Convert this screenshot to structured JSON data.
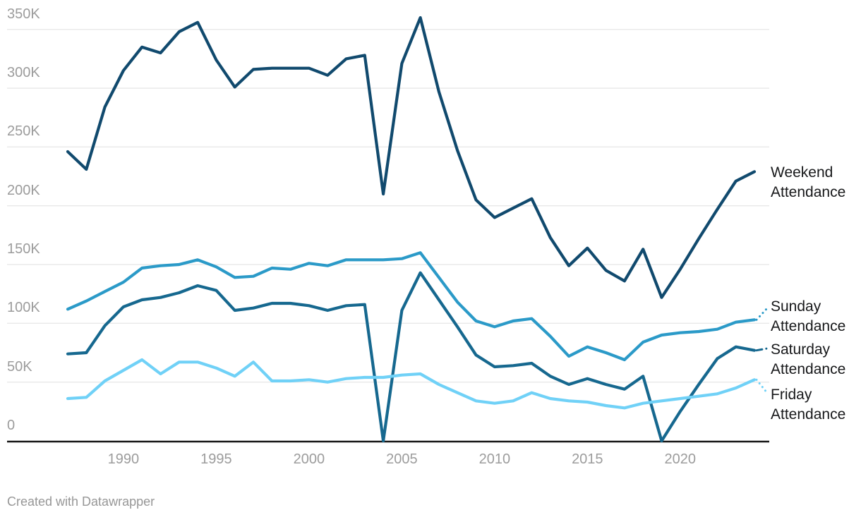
{
  "chart_data": {
    "type": "line",
    "title": "",
    "xlabel": "",
    "ylabel": "",
    "grid": "horizontal",
    "legend_position": "right-of-line-ends",
    "ylim": [
      0,
      350000
    ],
    "y_ticks": [
      {
        "value": 0,
        "label": "0"
      },
      {
        "value": 50000,
        "label": "50K"
      },
      {
        "value": 100000,
        "label": "100K"
      },
      {
        "value": 150000,
        "label": "150K"
      },
      {
        "value": 200000,
        "label": "200K"
      },
      {
        "value": 250000,
        "label": "250K"
      },
      {
        "value": 300000,
        "label": "300K"
      },
      {
        "value": 350000,
        "label": "350K"
      }
    ],
    "x_ticks": [
      1990,
      1995,
      2000,
      2005,
      2010,
      2015,
      2020
    ],
    "x": [
      1987,
      1988,
      1989,
      1990,
      1991,
      1992,
      1993,
      1994,
      1995,
      1996,
      1997,
      1998,
      1999,
      2000,
      2001,
      2002,
      2003,
      2004,
      2005,
      2006,
      2007,
      2008,
      2009,
      2010,
      2011,
      2012,
      2013,
      2014,
      2015,
      2016,
      2017,
      2018,
      2019,
      2020,
      2021,
      2022,
      2023,
      2024
    ],
    "series": [
      {
        "name": "Weekend Attendance",
        "label_lines": [
          "Weekend",
          "Attendance"
        ],
        "color": "#114a6e",
        "connector": "none",
        "values": [
          246000,
          231000,
          284000,
          315000,
          335000,
          330000,
          348000,
          356000,
          324000,
          301000,
          316000,
          317000,
          317000,
          317000,
          311000,
          325000,
          328000,
          210000,
          321000,
          360000,
          297000,
          247000,
          205000,
          190000,
          198000,
          206000,
          173000,
          149000,
          164000,
          145000,
          136000,
          163000,
          122000,
          146000,
          172000,
          197000,
          221000,
          229000
        ]
      },
      {
        "name": "Sunday Attendance",
        "label_lines": [
          "Sunday",
          "Attendance"
        ],
        "color": "#2b9ac8",
        "connector": "dotted",
        "values": [
          112000,
          119000,
          127000,
          135000,
          147000,
          149000,
          150000,
          154000,
          148000,
          139000,
          140000,
          147000,
          146000,
          151000,
          149000,
          154000,
          154000,
          154000,
          155000,
          160000,
          139000,
          118000,
          102000,
          97000,
          102000,
          104000,
          89000,
          72000,
          80000,
          75000,
          69000,
          84000,
          90000,
          92000,
          93000,
          95000,
          101000,
          103000
        ]
      },
      {
        "name": "Saturday Attendance",
        "label_lines": [
          "Saturday",
          "Attendance"
        ],
        "color": "#16688f",
        "connector": "dash-dot",
        "values": [
          74000,
          75000,
          98000,
          114000,
          120000,
          122000,
          126000,
          132000,
          128000,
          111000,
          113000,
          117000,
          117000,
          115000,
          111000,
          115000,
          116000,
          0,
          111000,
          143000,
          120000,
          97000,
          73000,
          63000,
          64000,
          66000,
          55000,
          48000,
          53000,
          48000,
          44000,
          55000,
          0,
          25000,
          48000,
          70000,
          80000,
          77000
        ]
      },
      {
        "name": "Friday Attendance",
        "label_lines": [
          "Friday",
          "Attendance"
        ],
        "color": "#70d1f7",
        "connector": "dotted",
        "values": [
          36000,
          37000,
          51000,
          60000,
          69000,
          57000,
          67000,
          67000,
          62000,
          55000,
          67000,
          51000,
          51000,
          52000,
          50000,
          53000,
          54000,
          54000,
          56000,
          57000,
          48000,
          41000,
          34000,
          32000,
          34000,
          41000,
          36000,
          34000,
          33000,
          30000,
          28000,
          32000,
          34000,
          36000,
          38000,
          40000,
          45000,
          52000
        ]
      }
    ]
  },
  "colors": {
    "background": "#ffffff",
    "gridline": "#e8e8e8",
    "axis": "#161616",
    "tick_text": "#9c9c9c",
    "label_text": "#17181a",
    "footer_text": "#979797"
  },
  "footer": {
    "credit": "Created with Datawrapper"
  }
}
